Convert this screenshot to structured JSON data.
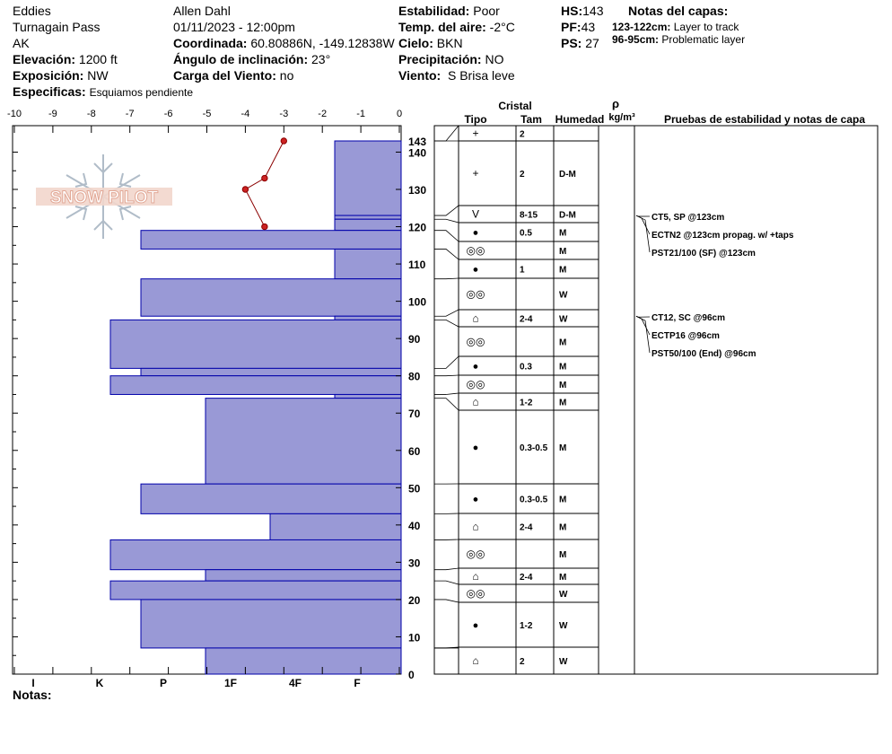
{
  "header": {
    "location": "Eddies",
    "area": "Turnagain Pass",
    "state": "AK",
    "elevation_label": "Elevación:",
    "elevation": "1200 ft",
    "exposure_label": "Exposición:",
    "exposure": "NW",
    "specifics_label": "Especificas:",
    "specifics": "Esquiamos pendiente",
    "observer": "Allen Dahl",
    "datetime": "01/11/2023 - 12:00pm",
    "coord_label": "Coordinada:",
    "coord": "60.80886N, -149.12838W",
    "slope_label": "Ángulo de inclinación:",
    "slope": "23°",
    "wind_load_label": "Carga del Viento:",
    "wind_load": "no",
    "stability_label": "Estabilidad:",
    "stability": "Poor",
    "air_temp_label": "Temp. del aire:",
    "air_temp": "-2°C",
    "sky_label": "Cielo:",
    "sky": "BKN",
    "precip_label": "Precipitación:",
    "precip": "NO",
    "wind_label": "Viento:",
    "wind": "S Brisa leve",
    "hs_label": "HS:",
    "hs": "143",
    "pf_label": "PF:",
    "pf": "43",
    "ps_label": "PS:",
    "ps": "27",
    "layer_notes_title": "Notas del capas:",
    "layer_notes": [
      {
        "range": "123-122cm:",
        "text": "Layer to track"
      },
      {
        "range": "96-95cm:",
        "text": "Problematic layer"
      }
    ]
  },
  "footer": {
    "notes_label": "Notas:"
  },
  "watermark": {
    "text": "SNOW PILOT",
    "color": "#e8b8a8"
  },
  "columns": {
    "crystal": "Cristal",
    "type": "Tipo",
    "size": "Tam",
    "moisture": "Humedad",
    "rho": "ρ",
    "density_unit": "kg/m³",
    "tests": "Pruebas de estabilidad y notas de capa"
  },
  "colors": {
    "layer_fill": "#9999d6",
    "layer_stroke": "#0000aa",
    "temp_line": "#8b0000",
    "temp_dot": "#cc2222"
  },
  "chart_data": {
    "type": "snow-profile",
    "temp_axis": {
      "ticks": [
        -10,
        -9,
        -8,
        -7,
        -6,
        -5,
        -4,
        -3,
        -2,
        -1,
        0
      ]
    },
    "height_axis": {
      "range": [
        0,
        143
      ],
      "ticks": [
        0,
        10,
        20,
        30,
        40,
        50,
        60,
        70,
        80,
        90,
        100,
        110,
        120,
        130,
        140
      ]
    },
    "top_label": "143",
    "hardness_labels": [
      "I",
      "K",
      "P",
      "1F",
      "4F",
      "F"
    ],
    "hardness_levels": {
      "F": 1,
      "4F": 2,
      "1F": 3,
      "P": 4,
      "K": 5,
      "I": 6
    },
    "hardness_layers": [
      {
        "top": 143,
        "bottom": 123,
        "hardness": "F"
      },
      {
        "top": 123,
        "bottom": 122,
        "hardness": "F"
      },
      {
        "top": 122,
        "bottom": 119,
        "hardness": "F"
      },
      {
        "top": 119,
        "bottom": 114,
        "hardness": "P"
      },
      {
        "top": 114,
        "bottom": 106,
        "hardness": "F"
      },
      {
        "top": 106,
        "bottom": 96,
        "hardness": "P"
      },
      {
        "top": 96,
        "bottom": 95,
        "hardness": "F"
      },
      {
        "top": 95,
        "bottom": 82,
        "hardness": "K"
      },
      {
        "top": 82,
        "bottom": 80,
        "hardness": "P"
      },
      {
        "top": 80,
        "bottom": 75,
        "hardness": "K"
      },
      {
        "top": 75,
        "bottom": 74,
        "hardness": "F"
      },
      {
        "top": 74,
        "bottom": 51,
        "hardness": "1F"
      },
      {
        "top": 51,
        "bottom": 43,
        "hardness": "P"
      },
      {
        "top": 43,
        "bottom": 36,
        "hardness": "4F"
      },
      {
        "top": 36,
        "bottom": 28,
        "hardness": "K"
      },
      {
        "top": 28,
        "bottom": 25,
        "hardness": "1F"
      },
      {
        "top": 25,
        "bottom": 20,
        "hardness": "K"
      },
      {
        "top": 20,
        "bottom": 7,
        "hardness": "P"
      },
      {
        "top": 7,
        "bottom": 0,
        "hardness": "1F"
      }
    ],
    "temperature_profile": [
      {
        "height": 143,
        "temp": -3.0
      },
      {
        "height": 133,
        "temp": -3.5
      },
      {
        "height": 130,
        "temp": -4.0
      },
      {
        "height": 120,
        "temp": -3.5
      }
    ],
    "layers": [
      {
        "top": 143,
        "bottom": 143,
        "type": "+",
        "size": "2",
        "moisture": ""
      },
      {
        "top": 143,
        "bottom": 123,
        "type": "+",
        "size": "2",
        "moisture": "D-M"
      },
      {
        "top": 123,
        "bottom": 122,
        "type": "V",
        "size": "8-15",
        "moisture": "D-M"
      },
      {
        "top": 122,
        "bottom": 119,
        "type": "●",
        "size": "0.5",
        "moisture": "M"
      },
      {
        "top": 119,
        "bottom": 114,
        "type": "◎◎",
        "size": "",
        "moisture": "M"
      },
      {
        "top": 114,
        "bottom": 106,
        "type": "●",
        "size": "1",
        "moisture": "M"
      },
      {
        "top": 106,
        "bottom": 96,
        "type": "◎◎",
        "size": "",
        "moisture": "W"
      },
      {
        "top": 96,
        "bottom": 95,
        "type": "⌂",
        "size": "2-4",
        "moisture": "W"
      },
      {
        "top": 95,
        "bottom": 82,
        "type": "◎◎",
        "size": "",
        "moisture": "M"
      },
      {
        "top": 82,
        "bottom": 80,
        "type": "●",
        "size": "0.3",
        "moisture": "M"
      },
      {
        "top": 80,
        "bottom": 75,
        "type": "◎◎",
        "size": "",
        "moisture": "M"
      },
      {
        "top": 75,
        "bottom": 74,
        "type": "⌂",
        "size": "1-2",
        "moisture": "M"
      },
      {
        "top": 74,
        "bottom": 51,
        "type": "●",
        "size": "0.3-0.5",
        "moisture": "M"
      },
      {
        "top": 51,
        "bottom": 43,
        "type": "●",
        "size": "0.3-0.5",
        "moisture": "M"
      },
      {
        "top": 43,
        "bottom": 36,
        "type": "⌂",
        "size": "2-4",
        "moisture": "M"
      },
      {
        "top": 36,
        "bottom": 28,
        "type": "◎◎",
        "size": "",
        "moisture": "M"
      },
      {
        "top": 28,
        "bottom": 25,
        "type": "⌂",
        "size": "2-4",
        "moisture": "M"
      },
      {
        "top": 25,
        "bottom": 20,
        "type": "◎◎",
        "size": "",
        "moisture": "W"
      },
      {
        "top": 20,
        "bottom": 7,
        "type": "●",
        "size": "1-2",
        "moisture": "W"
      },
      {
        "top": 7,
        "bottom": 0,
        "type": "⌂",
        "size": "2",
        "moisture": "W"
      }
    ],
    "tests": [
      {
        "height": 123,
        "text": "CT5, SP @123cm"
      },
      {
        "height": 123,
        "text": "ECTN2 @123cm  propag. w/ +taps"
      },
      {
        "height": 123,
        "text": "PST21/100 (SF) @123cm"
      },
      {
        "height": 96,
        "text": "CT12, SC @96cm"
      },
      {
        "height": 96,
        "text": "ECTP16 @96cm"
      },
      {
        "height": 96,
        "text": "PST50/100 (End) @96cm"
      }
    ]
  }
}
